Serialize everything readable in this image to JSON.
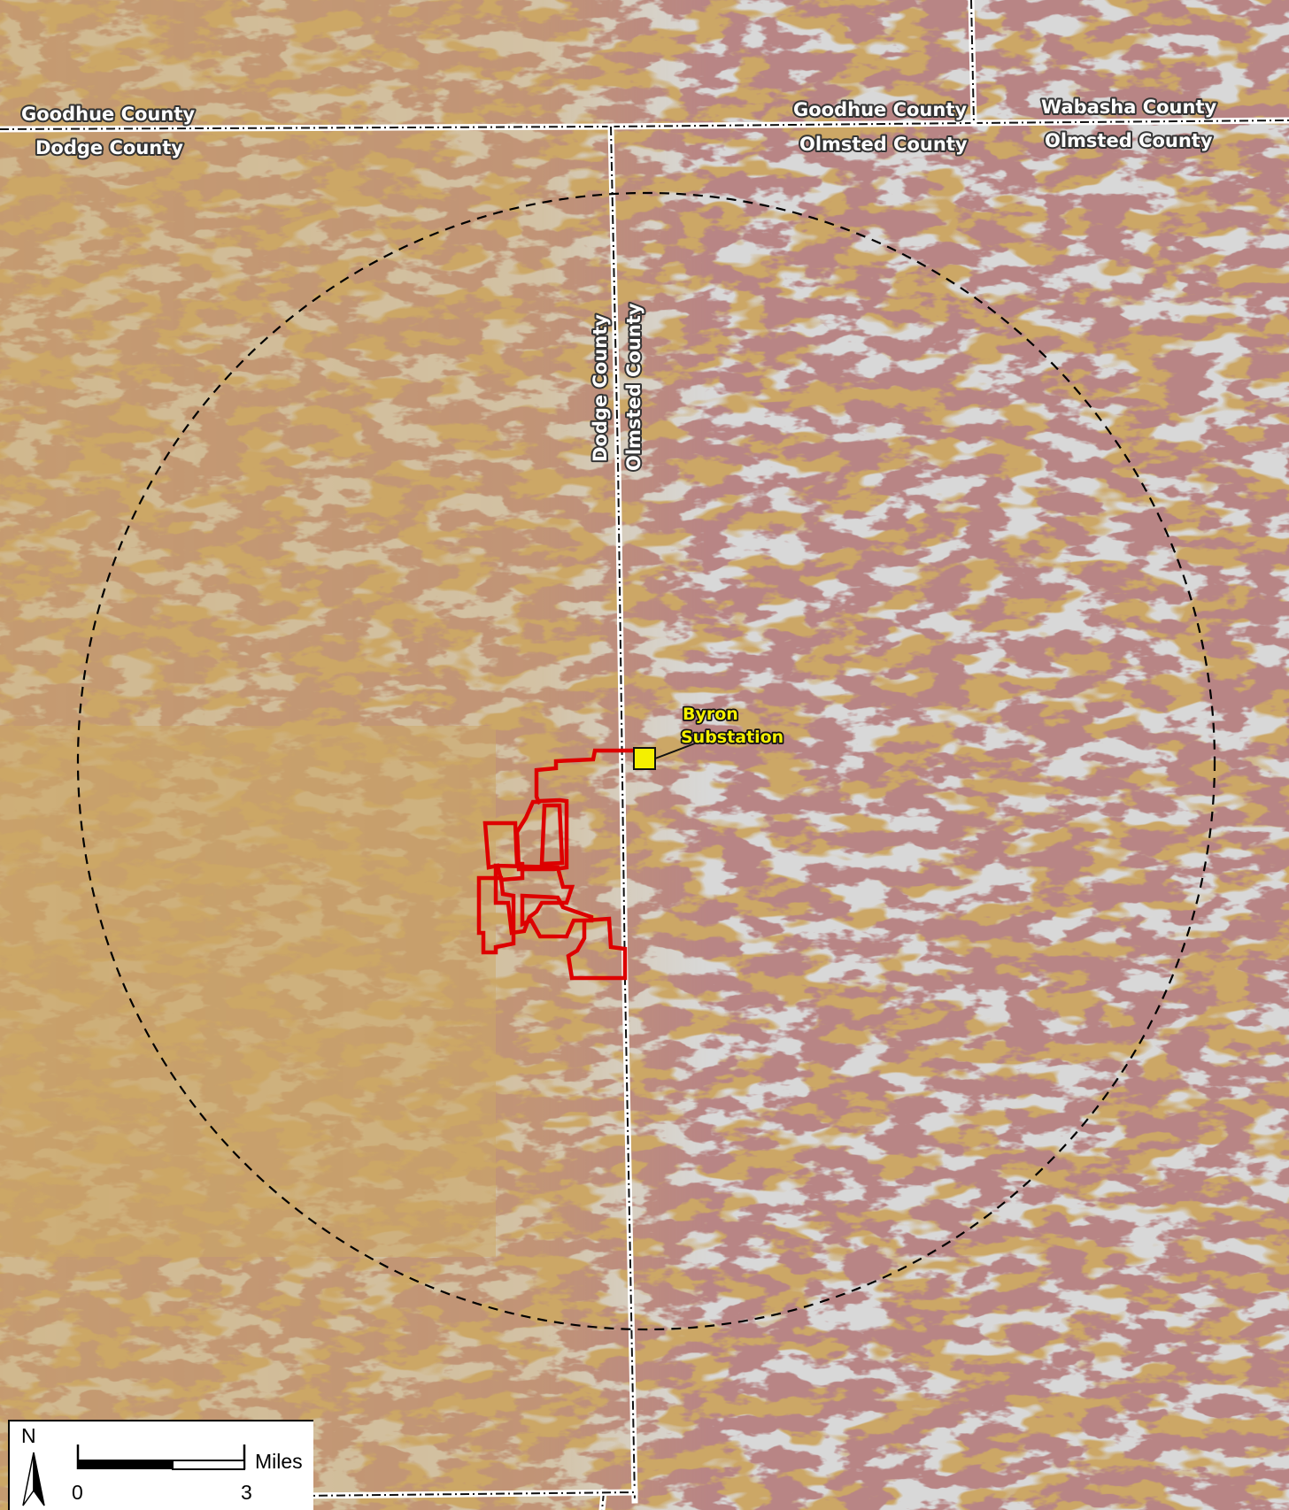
{
  "map": {
    "colors": {
      "base": "#cca766",
      "hydric": "#7a3c3c",
      "water": "#b0b0b0",
      "boundary": "#ffffff",
      "boundary_dash": "#111111",
      "project": "#dd0000",
      "substation": "#f4f000",
      "buffer": "#000000"
    },
    "county_labels": {
      "goodhue_west": "Goodhue County",
      "dodge_west": "Dodge County",
      "goodhue_east": "Goodhue County",
      "olmsted_north": "Olmsted County",
      "wabasha": "Wabasha County",
      "olmsted_northeast": "Olmsted County",
      "dodge_vertical": "Dodge County",
      "olmsted_vertical": "Olmsted County"
    },
    "substation": {
      "line1": "Byron",
      "line2": "Substation"
    }
  },
  "legend": {
    "north": "N",
    "scale_unit": "Miles",
    "scale_start": "0",
    "scale_end": "3"
  }
}
